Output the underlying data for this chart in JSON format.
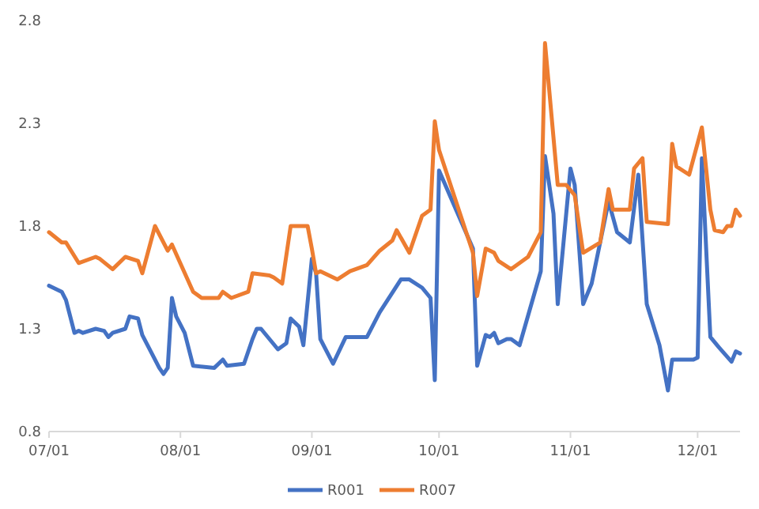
{
  "chart_data": {
    "type": "line",
    "xlim": [
      "--07-01",
      "--12-11"
    ],
    "ylim": [
      0.8,
      2.8
    ],
    "yticks": [
      0.8,
      1.3,
      1.8,
      2.3,
      2.8
    ],
    "xticks": [
      {
        "value": "--07-01",
        "label": "07/01"
      },
      {
        "value": "--08-01",
        "label": "08/01"
      },
      {
        "value": "--09-01",
        "label": "09/01"
      },
      {
        "value": "--10-01",
        "label": "10/01"
      },
      {
        "value": "--11-01",
        "label": "11/01"
      },
      {
        "value": "--12-01",
        "label": "12/01"
      }
    ],
    "grid": false,
    "legend": "bottom",
    "marker": "none",
    "line_style": "solid",
    "series": [
      {
        "name": "R001",
        "color": "#4472c4",
        "x": [
          "--07-01",
          "--07-04",
          "--07-05",
          "--07-07",
          "--07-08",
          "--07-09",
          "--07-12",
          "--07-14",
          "--07-15",
          "--07-16",
          "--07-19",
          "--07-20",
          "--07-22",
          "--07-23",
          "--07-25",
          "--07-27",
          "--07-28",
          "--07-29",
          "--07-30",
          "--07-31",
          "--08-02",
          "--08-04",
          "--08-09",
          "--08-11",
          "--08-12",
          "--08-16",
          "--08-18",
          "--08-19",
          "--08-20",
          "--08-24",
          "--08-26",
          "--08-27",
          "--08-29",
          "--08-30",
          "--09-01",
          "--09-02",
          "--09-03",
          "--09-06",
          "--09-09",
          "--09-14",
          "--09-17",
          "--09-22",
          "--09-24",
          "--09-27",
          "--09-29",
          "--09-30",
          "--10-01",
          "--10-09",
          "--10-10",
          "--10-12",
          "--10-13",
          "--10-14",
          "--10-15",
          "--10-17",
          "--10-18",
          "--10-20",
          "--10-25",
          "--10-26",
          "--10-28",
          "--10-29",
          "--11-01",
          "--11-02",
          "--11-04",
          "--11-06",
          "--11-10",
          "--11-12",
          "--11-15",
          "--11-17",
          "--11-19",
          "--11-22",
          "--11-24",
          "--11-25",
          "--11-26",
          "--11-30",
          "--12-01",
          "--12-02",
          "--12-04",
          "--12-06",
          "--12-09",
          "--12-10",
          "--12-11"
        ],
        "values": [
          1.51,
          1.48,
          1.44,
          1.28,
          1.29,
          1.28,
          1.3,
          1.29,
          1.26,
          1.28,
          1.3,
          1.36,
          1.35,
          1.27,
          1.19,
          1.11,
          1.08,
          1.11,
          1.45,
          1.36,
          1.28,
          1.12,
          1.11,
          1.15,
          1.12,
          1.13,
          1.25,
          1.3,
          1.3,
          1.2,
          1.23,
          1.35,
          1.31,
          1.22,
          1.64,
          1.57,
          1.25,
          1.13,
          1.26,
          1.26,
          1.38,
          1.54,
          1.54,
          1.5,
          1.45,
          1.05,
          2.07,
          1.69,
          1.12,
          1.27,
          1.26,
          1.28,
          1.23,
          1.25,
          1.25,
          1.22,
          1.58,
          2.14,
          1.86,
          1.42,
          2.08,
          2.0,
          1.42,
          1.52,
          1.92,
          1.77,
          1.72,
          2.05,
          1.42,
          1.22,
          1.0,
          1.15,
          1.15,
          1.15,
          1.16,
          2.13,
          1.26,
          1.21,
          1.14,
          1.19,
          1.18
        ]
      },
      {
        "name": "R007",
        "color": "#ed7d31",
        "x": [
          "--07-01",
          "--07-04",
          "--07-05",
          "--07-08",
          "--07-12",
          "--07-13",
          "--07-16",
          "--07-19",
          "--07-22",
          "--07-23",
          "--07-26",
          "--07-29",
          "--07-30",
          "--08-04",
          "--08-06",
          "--08-10",
          "--08-11",
          "--08-13",
          "--08-17",
          "--08-18",
          "--08-22",
          "--08-23",
          "--08-25",
          "--08-27",
          "--08-31",
          "--09-01",
          "--09-02",
          "--09-03",
          "--09-07",
          "--09-10",
          "--09-14",
          "--09-17",
          "--09-20",
          "--09-21",
          "--09-24",
          "--09-27",
          "--09-29",
          "--09-30",
          "--10-01",
          "--10-09",
          "--10-10",
          "--10-12",
          "--10-14",
          "--10-15",
          "--10-18",
          "--10-22",
          "--10-25",
          "--10-26",
          "--10-29",
          "--10-31",
          "--11-02",
          "--11-04",
          "--11-08",
          "--11-10",
          "--11-11",
          "--11-15",
          "--11-16",
          "--11-18",
          "--11-19",
          "--11-24",
          "--11-25",
          "--11-26",
          "--11-29",
          "--12-02",
          "--12-04",
          "--12-05",
          "--12-07",
          "--12-08",
          "--12-09",
          "--12-10",
          "--12-11"
        ],
        "values": [
          1.77,
          1.72,
          1.72,
          1.62,
          1.65,
          1.64,
          1.59,
          1.65,
          1.63,
          1.57,
          1.8,
          1.68,
          1.71,
          1.48,
          1.45,
          1.45,
          1.48,
          1.45,
          1.48,
          1.57,
          1.56,
          1.55,
          1.52,
          1.8,
          1.8,
          1.69,
          1.57,
          1.58,
          1.54,
          1.58,
          1.61,
          1.68,
          1.73,
          1.78,
          1.67,
          1.85,
          1.88,
          2.31,
          2.17,
          1.67,
          1.46,
          1.69,
          1.67,
          1.63,
          1.59,
          1.65,
          1.77,
          2.69,
          2.0,
          2.0,
          1.95,
          1.67,
          1.72,
          1.98,
          1.88,
          1.88,
          2.08,
          2.13,
          1.82,
          1.81,
          2.2,
          2.09,
          2.05,
          2.28,
          1.88,
          1.78,
          1.77,
          1.8,
          1.8,
          1.88,
          1.85
        ]
      }
    ]
  }
}
